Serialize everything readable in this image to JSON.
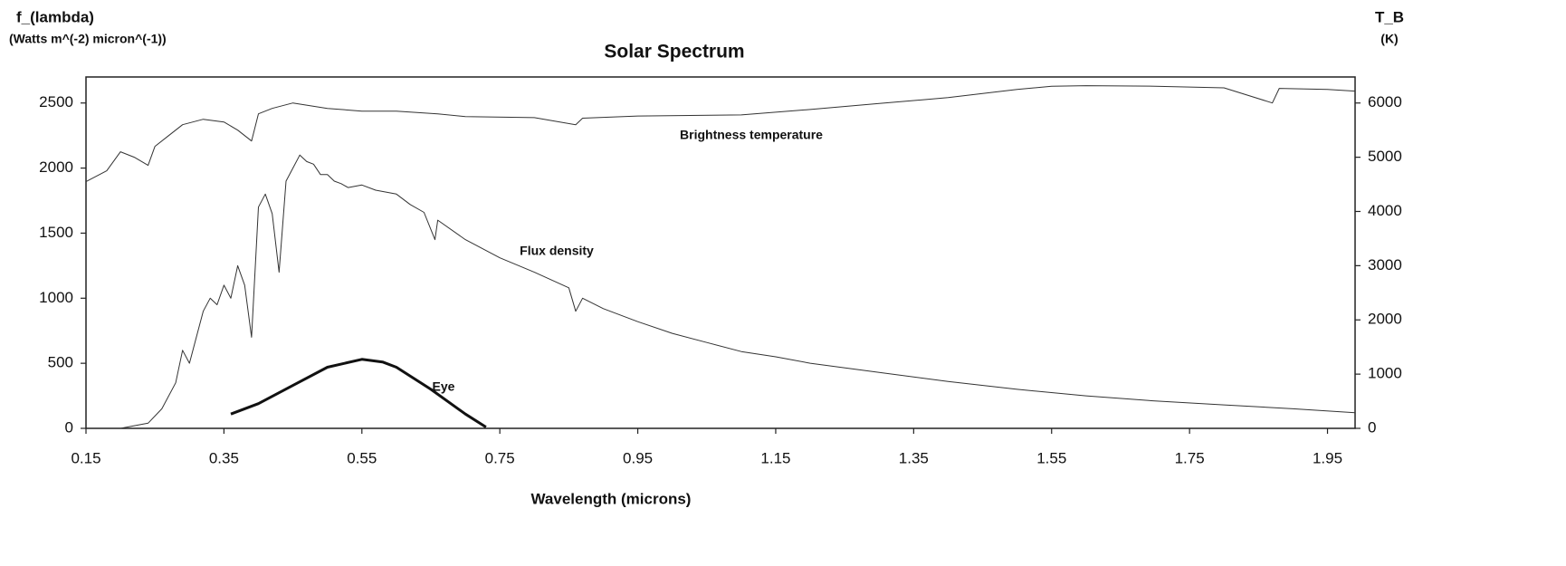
{
  "chart_data": {
    "type": "line",
    "title": "Solar Spectrum",
    "xlabel": "Wavelength (microns)",
    "ylabel": "f_(lambda)",
    "ylabel_units": "(Watts m^(-2) micron^(-1))",
    "y2label": "T_B",
    "y2label_units": "(K)",
    "xlim": [
      0.15,
      1.99
    ],
    "xticks": [
      0.15,
      0.35,
      0.55,
      0.75,
      0.95,
      1.15,
      1.35,
      1.55,
      1.75,
      1.95
    ],
    "ylim": [
      0,
      2700
    ],
    "yticks": [
      0,
      500,
      1000,
      1500,
      2000,
      2500
    ],
    "y2lim": [
      0,
      6480
    ],
    "y2ticks": [
      0,
      1000,
      2000,
      3000,
      4000,
      5000,
      6000
    ],
    "series": [
      {
        "name": "Brightness temperature",
        "color": "#333333",
        "linewidth": 1,
        "axis": "y2",
        "x": [
          0.15,
          0.18,
          0.2,
          0.22,
          0.24,
          0.25,
          0.27,
          0.29,
          0.32,
          0.35,
          0.37,
          0.39,
          0.4,
          0.42,
          0.45,
          0.5,
          0.55,
          0.6,
          0.66,
          0.7,
          0.8,
          0.86,
          0.87,
          0.95,
          1.1,
          1.2,
          1.3,
          1.4,
          1.5,
          1.55,
          1.6,
          1.7,
          1.8,
          1.87,
          1.88,
          1.95,
          1.99
        ],
        "values": [
          4550,
          4750,
          5100,
          5000,
          4850,
          5200,
          5400,
          5600,
          5700,
          5650,
          5500,
          5300,
          5800,
          5900,
          6000,
          5900,
          5850,
          5850,
          5800,
          5750,
          5730,
          5600,
          5720,
          5760,
          5780,
          5880,
          5990,
          6100,
          6250,
          6310,
          6320,
          6310,
          6280,
          6000,
          6270,
          6250,
          6220
        ]
      },
      {
        "name": "Flux density",
        "color": "#333333",
        "linewidth": 1,
        "x": [
          0.2,
          0.22,
          0.24,
          0.26,
          0.28,
          0.29,
          0.3,
          0.31,
          0.32,
          0.33,
          0.34,
          0.35,
          0.36,
          0.37,
          0.38,
          0.39,
          0.4,
          0.41,
          0.42,
          0.43,
          0.44,
          0.45,
          0.46,
          0.47,
          0.48,
          0.49,
          0.5,
          0.51,
          0.52,
          0.53,
          0.55,
          0.57,
          0.6,
          0.62,
          0.64,
          0.656,
          0.66,
          0.7,
          0.75,
          0.8,
          0.85,
          0.86,
          0.87,
          0.9,
          0.95,
          1.0,
          1.05,
          1.1,
          1.15,
          1.2,
          1.3,
          1.4,
          1.5,
          1.6,
          1.7,
          1.8,
          1.9,
          1.99
        ],
        "values": [
          0,
          20,
          40,
          150,
          350,
          600,
          500,
          700,
          900,
          1000,
          950,
          1100,
          1000,
          1250,
          1100,
          700,
          1700,
          1800,
          1650,
          1200,
          1900,
          2000,
          2100,
          2050,
          2030,
          1950,
          1950,
          1900,
          1880,
          1850,
          1870,
          1830,
          1800,
          1720,
          1660,
          1450,
          1600,
          1450,
          1310,
          1200,
          1080,
          900,
          1000,
          920,
          820,
          730,
          660,
          590,
          550,
          500,
          430,
          360,
          300,
          250,
          210,
          180,
          150,
          120
        ]
      },
      {
        "name": "Eye",
        "color": "#111111",
        "linewidth": 3,
        "x": [
          0.36,
          0.4,
          0.45,
          0.5,
          0.55,
          0.58,
          0.6,
          0.65,
          0.7,
          0.73
        ],
        "values": [
          110,
          190,
          330,
          470,
          530,
          510,
          470,
          300,
          110,
          10
        ]
      }
    ]
  }
}
